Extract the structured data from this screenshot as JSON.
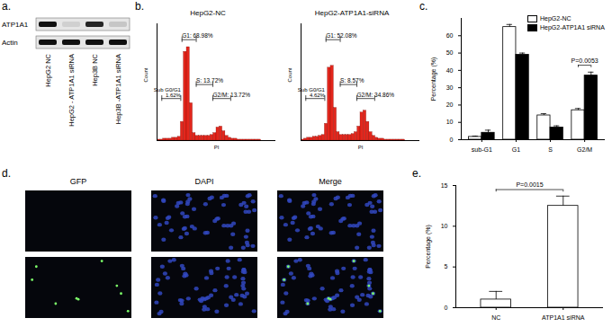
{
  "panel_labels": [
    "a.",
    "b.",
    "c.",
    "d.",
    "e."
  ],
  "blot": {
    "row_labels": [
      "ATP1A1",
      "Actin"
    ],
    "lanes": [
      "HepG2 NC",
      "HepG2 - ATP1A1 siRNA",
      "Hep3B NC",
      "Hep3B -ATP1A1 siRNA"
    ],
    "intensity": [
      [
        1,
        0.1,
        0.9,
        0.15
      ],
      [
        1,
        1,
        1,
        1
      ]
    ]
  },
  "chart_data": [
    {
      "type": "histogram",
      "panel": "b.",
      "title": "HepG2-NC",
      "x_label": "PI",
      "y_label": "Count",
      "bins": [
        0,
        25,
        50,
        75,
        100,
        125,
        150,
        175,
        200,
        225,
        250,
        275,
        300,
        325,
        350,
        375,
        400,
        425,
        450,
        475,
        500,
        525,
        550,
        575,
        600,
        625,
        650,
        675,
        700,
        725,
        750,
        775,
        800,
        825,
        850,
        875,
        900,
        925,
        950,
        975,
        1000
      ],
      "counts": [
        1,
        1,
        2,
        2,
        2,
        3,
        3,
        4,
        20,
        95,
        100,
        40,
        8,
        5,
        5,
        5,
        5,
        5,
        6,
        8,
        14,
        15,
        10,
        5,
        3,
        2,
        2,
        1,
        1,
        1,
        1,
        1,
        1,
        1,
        1,
        0,
        0,
        0,
        0,
        0
      ],
      "color": "#e3261c",
      "xlim": [
        0,
        1000
      ],
      "ylim": [
        0,
        125
      ],
      "tick_labels": false,
      "gates": [
        {
          "label": "Sub G0/G1\n1.62%",
          "range": [
            40,
            200
          ],
          "y": 45
        },
        {
          "label": "G1: 68.98%",
          "range": [
            210,
            330
          ],
          "y": 108
        },
        {
          "label": "S: 13.72%",
          "range": [
            330,
            470
          ],
          "y": 60
        },
        {
          "label": "G2/M: 13.72%",
          "range": [
            470,
            620
          ],
          "y": 45
        }
      ]
    },
    {
      "type": "histogram",
      "title": "HepG2-ATP1A1-siRNA",
      "x_label": "PI",
      "y_label": "Count",
      "bins": [
        0,
        25,
        50,
        75,
        100,
        125,
        150,
        175,
        200,
        225,
        250,
        275,
        300,
        325,
        350,
        375,
        400,
        425,
        450,
        475,
        500,
        525,
        550,
        575,
        600,
        625,
        650,
        675,
        700,
        725,
        750,
        775,
        800,
        825,
        850,
        875,
        900,
        925,
        950,
        975,
        1000
      ],
      "counts": [
        1,
        2,
        3,
        3,
        4,
        4,
        5,
        6,
        18,
        78,
        80,
        35,
        9,
        6,
        6,
        6,
        6,
        7,
        9,
        15,
        30,
        32,
        20,
        9,
        5,
        3,
        2,
        2,
        1,
        1,
        1,
        1,
        1,
        1,
        1,
        0,
        0,
        0,
        0,
        0
      ],
      "color": "#e3261c",
      "xlim": [
        0,
        1000
      ],
      "ylim": [
        0,
        125
      ],
      "tick_labels": false,
      "gates": [
        {
          "label": "Sub G0/G1\n4.62%",
          "range": [
            40,
            200
          ],
          "y": 45
        },
        {
          "label": "G1: 52.08%",
          "range": [
            210,
            330
          ],
          "y": 108
        },
        {
          "label": "S: 8.57%",
          "range": [
            330,
            470
          ],
          "y": 60
        },
        {
          "label": "G2/M: 34.86%",
          "range": [
            470,
            620
          ],
          "y": 45
        }
      ]
    },
    {
      "type": "bar",
      "panel": "c.",
      "categories": [
        "sub-G1",
        "G1",
        "S",
        "G2/M"
      ],
      "series": [
        {
          "name": "HepG2-NC",
          "color": "#ffffff",
          "values": [
            1.6,
            65,
            14,
            17
          ],
          "errors": [
            0.5,
            1.5,
            1,
            1
          ]
        },
        {
          "name": "HepG2-ATP1A1 siRNA",
          "color": "#000000",
          "values": [
            4,
            49,
            7,
            37
          ],
          "errors": [
            1.5,
            1,
            1,
            2
          ]
        }
      ],
      "y_label": "Percentage (%)",
      "ylim": [
        0,
        70
      ],
      "yticks": [
        0,
        10,
        20,
        30,
        40,
        50,
        60
      ],
      "legend": "top-right",
      "annotations": [
        {
          "text": "P=0.0053",
          "categories": [
            "G2/M"
          ],
          "y": 43
        }
      ]
    },
    {
      "type": "bar",
      "panel": "e.",
      "categories": [
        "NC",
        "ATP1A1 siRNA"
      ],
      "values": [
        1,
        12.5
      ],
      "errors": [
        1,
        1.2
      ],
      "color": "#ffffff",
      "y_label": "Percentage (%)",
      "ylim": [
        0,
        15
      ],
      "yticks": [
        0,
        5,
        10,
        15
      ],
      "annotations": [
        {
          "text": "P=0.0015",
          "categories": [
            "NC",
            "ATP1A1 siRNA"
          ],
          "y": 14.5
        }
      ]
    }
  ],
  "micrographs": {
    "columns": [
      "GFP",
      "DAPI",
      "Merge"
    ]
  }
}
